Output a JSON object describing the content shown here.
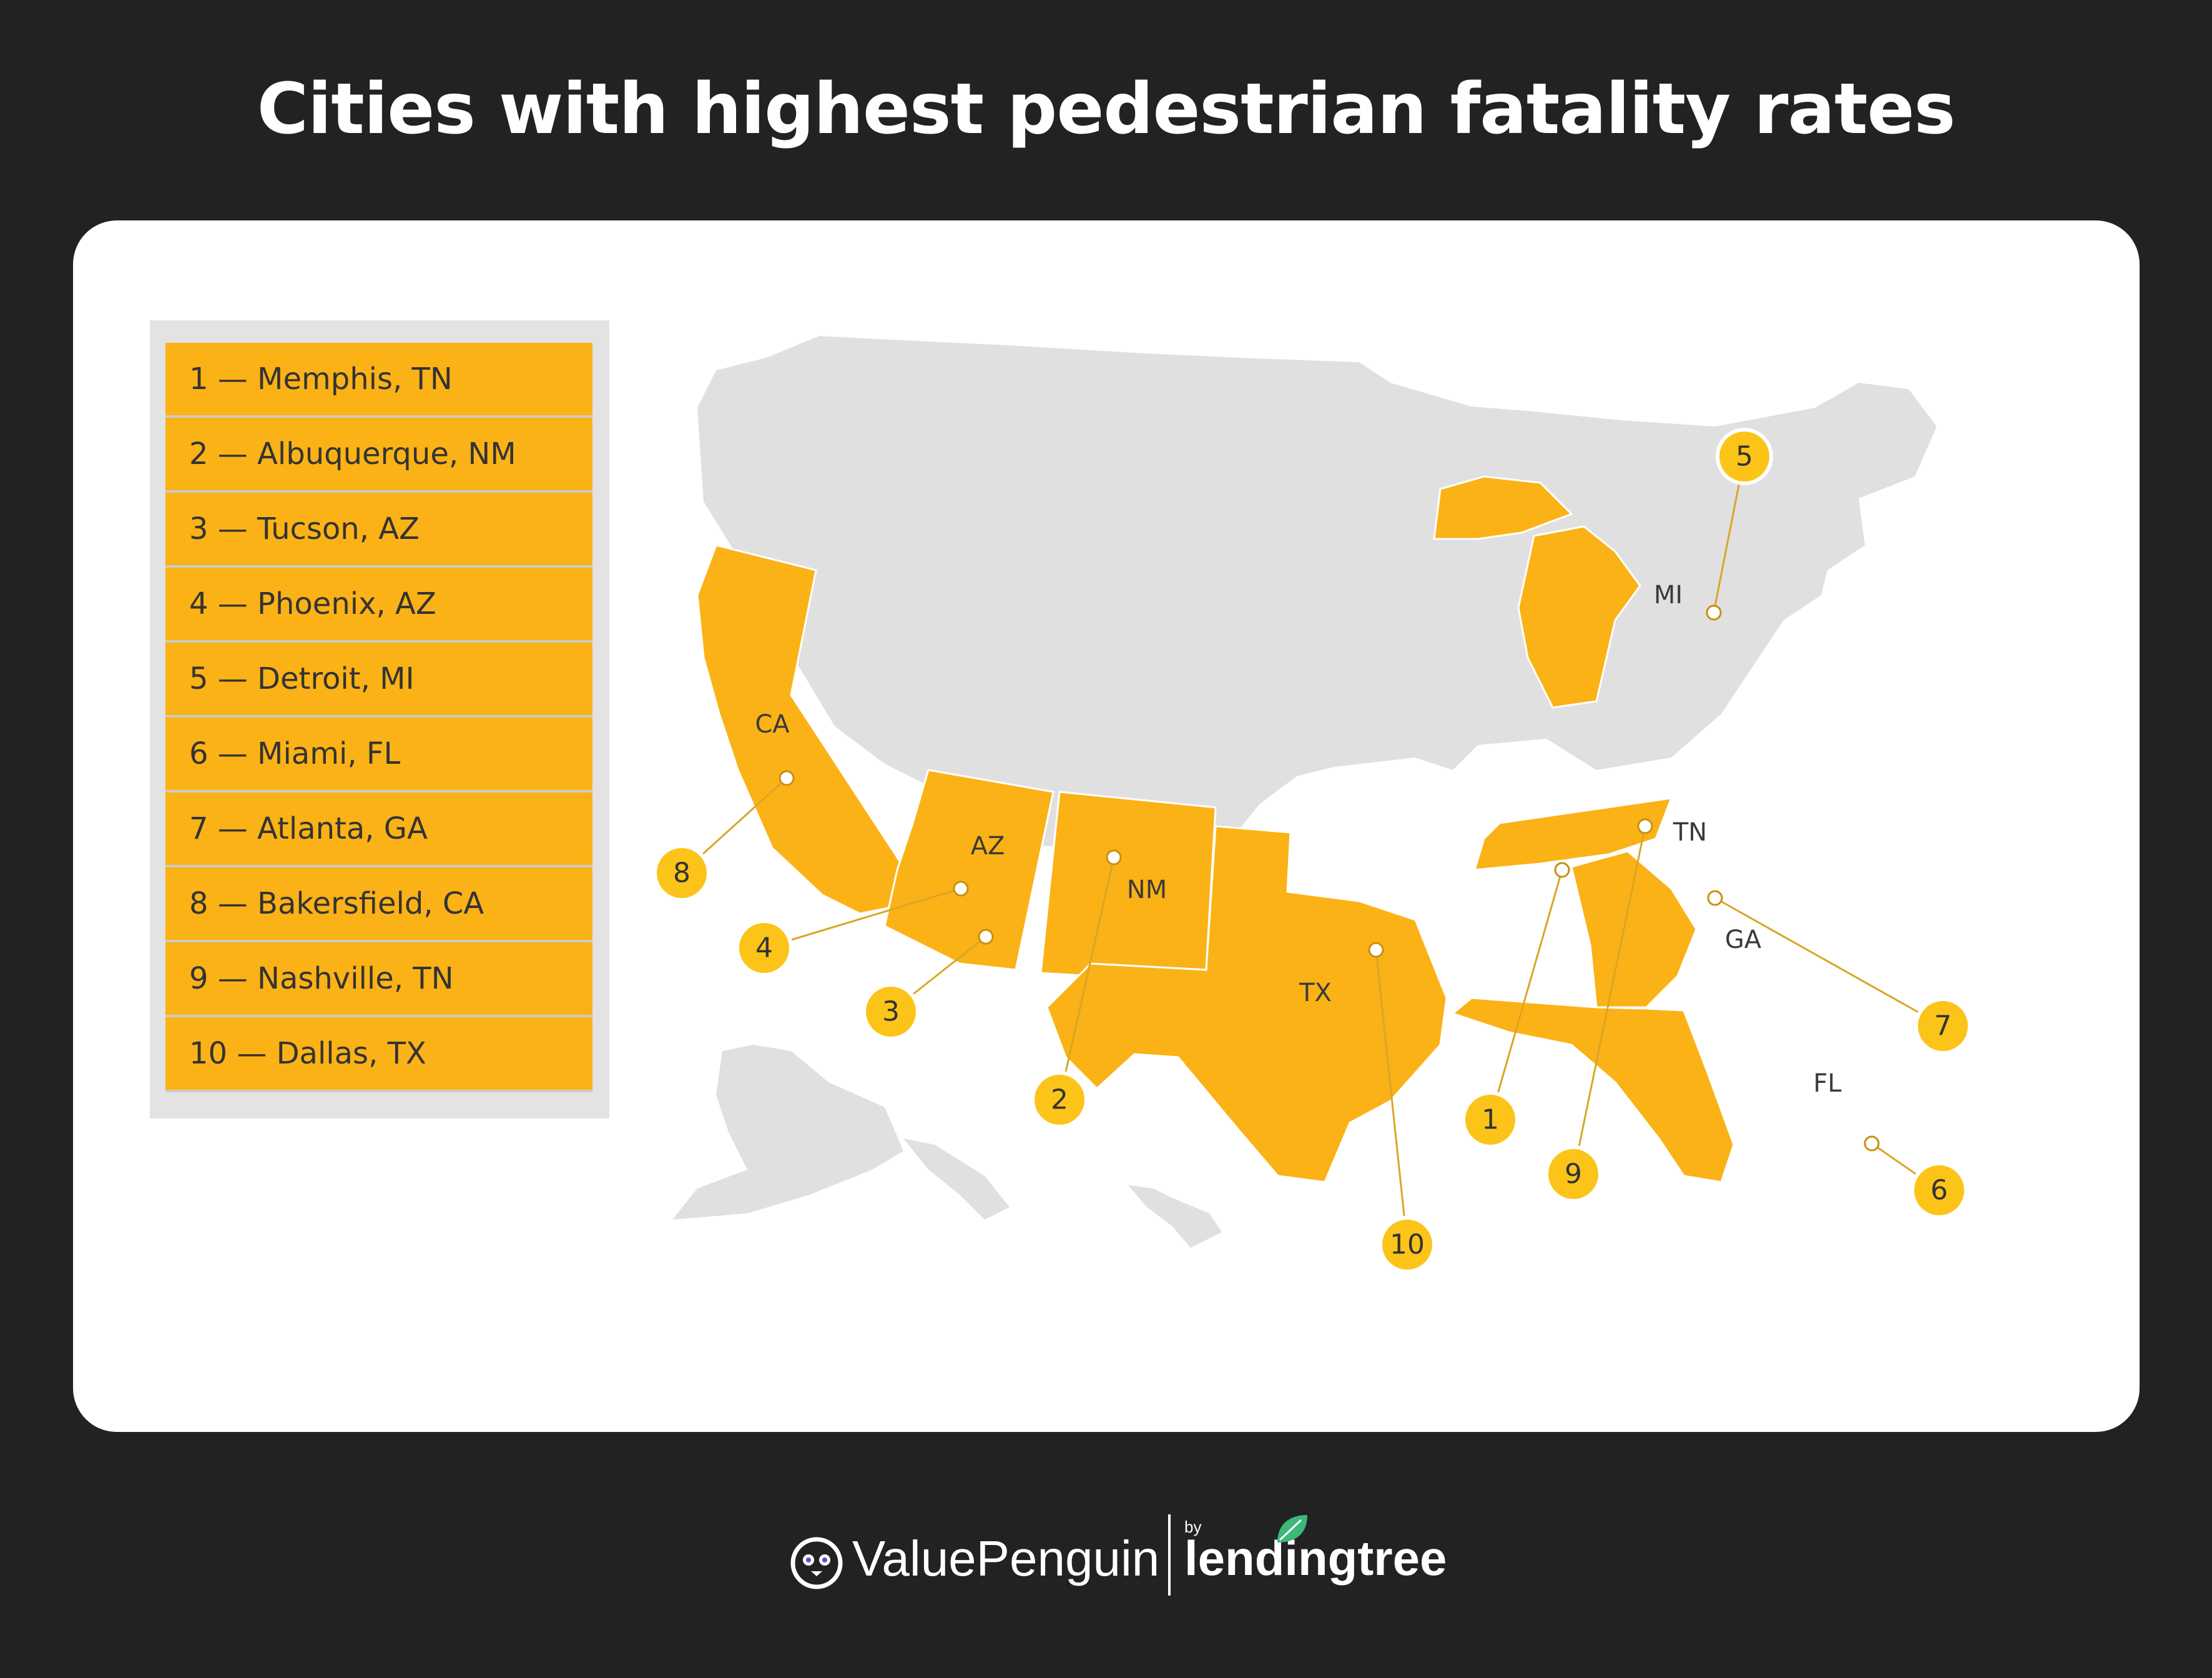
{
  "title": "Cities with highest pedestrian fatality rates",
  "colors": {
    "background": "#222222",
    "card": "#ffffff",
    "highlight_state": "#fbb216",
    "other_states": "#e0e0e0",
    "legend_panel": "#e3e3e3",
    "badge": "#fcc419",
    "leaf_green": "#3cb878"
  },
  "legend": [
    "1 — Memphis, TN",
    "2 — Albuquerque, NM",
    "3 — Tucson, AZ",
    "4 — Phoenix, AZ",
    "5 — Detroit, MI",
    "6 — Miami, FL",
    "7 — Atlanta, GA",
    "8 — Bakersfield, CA",
    "9 — Nashville, TN",
    "10 — Dallas, TX"
  ],
  "highlighted_states": [
    "CA",
    "AZ",
    "NM",
    "TX",
    "MI",
    "TN",
    "GA",
    "FL"
  ],
  "markers": [
    {
      "rank": "1",
      "city": "Memphis",
      "state": "TN"
    },
    {
      "rank": "2",
      "city": "Albuquerque",
      "state": "NM"
    },
    {
      "rank": "3",
      "city": "Tucson",
      "state": "AZ"
    },
    {
      "rank": "4",
      "city": "Phoenix",
      "state": "AZ"
    },
    {
      "rank": "5",
      "city": "Detroit",
      "state": "MI"
    },
    {
      "rank": "6",
      "city": "Miami",
      "state": "FL"
    },
    {
      "rank": "7",
      "city": "Atlanta",
      "state": "GA"
    },
    {
      "rank": "8",
      "city": "Bakersfield",
      "state": "CA"
    },
    {
      "rank": "9",
      "city": "Nashville",
      "state": "TN"
    },
    {
      "rank": "10",
      "city": "Dallas",
      "state": "TX"
    }
  ],
  "footer": {
    "brand": "ValuePenguin",
    "by": "by",
    "partner": "lendingtree"
  }
}
